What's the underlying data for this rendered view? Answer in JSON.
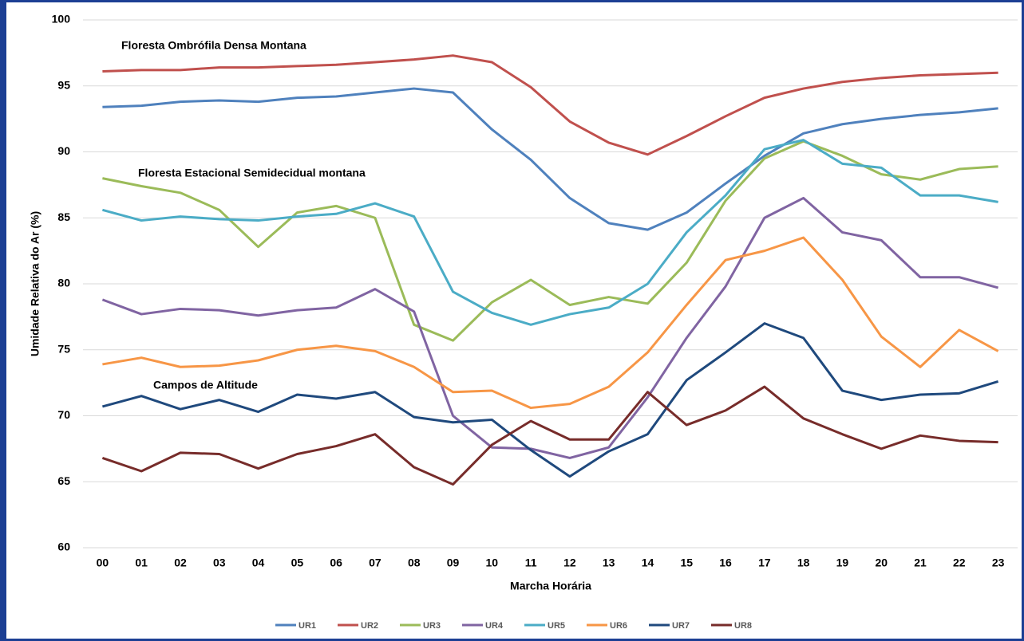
{
  "chart_data": {
    "type": "line",
    "y_label": "Umidade Relativa do Ar (%)",
    "x_label": "Marcha Horária",
    "annotations": [
      "Floresta Ombrófila Densa Montana",
      "Floresta Estacional Semidecidual montana",
      "Campos de Altitude"
    ],
    "categories": [
      "00",
      "01",
      "02",
      "03",
      "04",
      "05",
      "06",
      "07",
      "08",
      "09",
      "10",
      "11",
      "12",
      "13",
      "14",
      "15",
      "16",
      "17",
      "18",
      "19",
      "20",
      "21",
      "22",
      "23"
    ],
    "ylim": [
      60,
      100
    ],
    "yticks": [
      60,
      65,
      70,
      75,
      80,
      85,
      90,
      95,
      100
    ],
    "grid": true,
    "series": [
      {
        "name": "UR1",
        "color": "#4f81bd",
        "values": [
          93.4,
          93.5,
          93.8,
          93.9,
          93.8,
          94.1,
          94.2,
          94.5,
          94.8,
          94.5,
          91.7,
          89.4,
          86.5,
          84.6,
          84.1,
          85.4,
          87.6,
          89.7,
          91.4,
          92.1,
          92.5,
          92.8,
          93.0,
          93.3
        ]
      },
      {
        "name": "UR2",
        "color": "#c0504d",
        "values": [
          96.1,
          96.2,
          96.2,
          96.4,
          96.4,
          96.5,
          96.6,
          96.8,
          97.0,
          97.3,
          96.8,
          94.9,
          92.3,
          90.7,
          89.8,
          91.2,
          92.7,
          94.1,
          94.8,
          95.3,
          95.6,
          95.8,
          95.9,
          96.0
        ]
      },
      {
        "name": "UR3",
        "color": "#9bbb59",
        "values": [
          88.0,
          87.4,
          86.9,
          85.6,
          82.8,
          85.4,
          85.9,
          85.0,
          76.9,
          75.7,
          78.6,
          80.3,
          78.4,
          79.0,
          78.5,
          81.6,
          86.3,
          89.5,
          90.8,
          89.7,
          88.3,
          87.9,
          88.7,
          88.9
        ]
      },
      {
        "name": "UR4",
        "color": "#8064a2",
        "values": [
          78.8,
          77.7,
          78.1,
          78.0,
          77.6,
          78.0,
          78.2,
          79.6,
          77.9,
          70.0,
          67.6,
          67.5,
          66.8,
          67.6,
          71.4,
          75.9,
          79.8,
          85.0,
          86.5,
          83.9,
          83.3,
          80.5,
          80.5,
          79.7
        ]
      },
      {
        "name": "UR5",
        "color": "#4bacc6",
        "values": [
          85.6,
          84.8,
          85.1,
          84.9,
          84.8,
          85.1,
          85.3,
          86.1,
          85.1,
          79.4,
          77.8,
          76.9,
          77.7,
          78.2,
          80.0,
          83.9,
          86.7,
          90.2,
          90.9,
          89.1,
          88.8,
          86.7,
          86.7,
          86.2
        ]
      },
      {
        "name": "UR6",
        "color": "#f79646",
        "values": [
          73.9,
          74.4,
          73.7,
          73.8,
          74.2,
          75.0,
          75.3,
          74.9,
          73.7,
          71.8,
          71.9,
          70.6,
          70.9,
          72.2,
          74.8,
          78.4,
          81.8,
          82.5,
          83.5,
          80.3,
          76.0,
          73.7,
          76.5,
          74.9
        ]
      },
      {
        "name": "UR7",
        "color": "#1f497d",
        "values": [
          70.7,
          71.5,
          70.5,
          71.2,
          70.3,
          71.6,
          71.3,
          71.8,
          69.9,
          69.5,
          69.7,
          67.4,
          65.4,
          67.3,
          68.6,
          72.7,
          74.8,
          77.0,
          75.9,
          71.9,
          71.2,
          71.6,
          71.7,
          72.6
        ]
      },
      {
        "name": "UR8",
        "color": "#772c2a",
        "values": [
          66.8,
          65.8,
          67.2,
          67.1,
          66.0,
          67.1,
          67.7,
          68.6,
          66.1,
          64.8,
          67.8,
          69.6,
          68.2,
          68.2,
          71.8,
          69.3,
          70.4,
          72.2,
          69.8,
          68.6,
          67.5,
          68.5,
          68.1,
          68.0
        ]
      }
    ]
  }
}
